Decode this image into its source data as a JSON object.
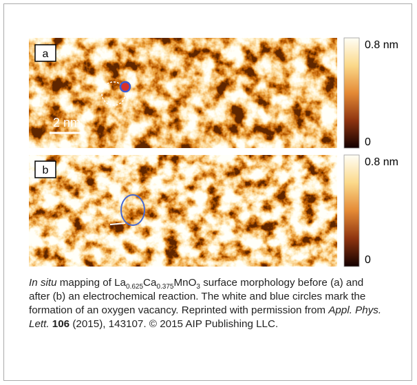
{
  "figure": {
    "panels": [
      {
        "label": "a",
        "scale_bar": "2 nm",
        "colorbar_max": "0.8 nm",
        "colorbar_min": "0"
      },
      {
        "label": "b",
        "colorbar_max": "0.8 nm",
        "colorbar_min": "0"
      }
    ]
  },
  "caption": [
    "In situ",
    " mapping of La",
    "0.625",
    "Ca",
    "0.375",
    "MnO",
    "3",
    " surface morphology before (a) and after (b) an electrochemical reaction. The white and blue circles mark the formation of an oxygen vacancy. Reprinted with permission from ",
    "Appl. Phys. Lett. ",
    "106",
    " (2015), 143107. © 2015 AIP Publishing LLC."
  ]
}
